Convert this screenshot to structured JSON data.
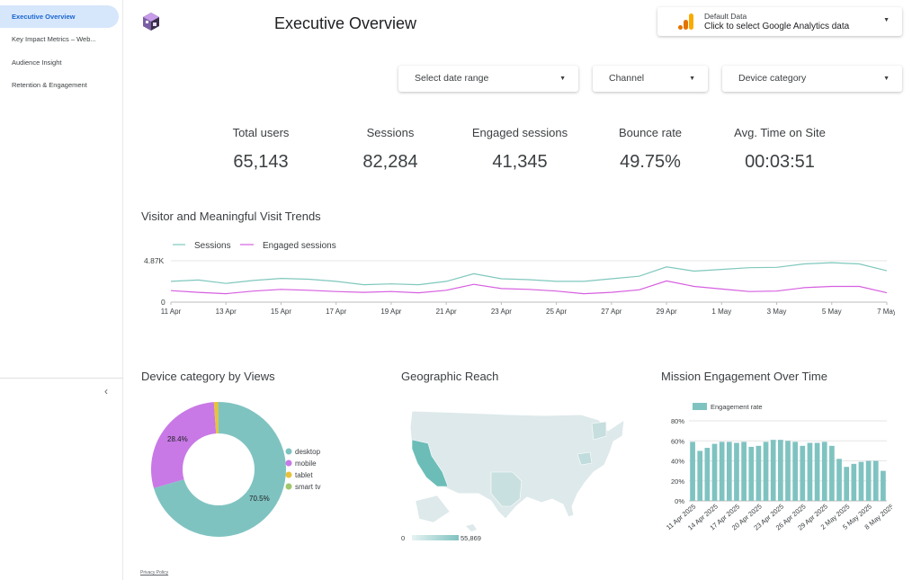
{
  "sidebar": {
    "items": [
      {
        "label": "Executive Overview",
        "active": true
      },
      {
        "label": "Key Impact Metrics – Web...",
        "active": false
      },
      {
        "label": "Audience Insight",
        "active": false
      },
      {
        "label": "Retention & Engagement",
        "active": false
      }
    ],
    "collapse_icon": "chevron-left-icon"
  },
  "header": {
    "title": "Executive Overview",
    "data_source": {
      "label": "Default Data",
      "prompt": "Click to select Google Analytics data",
      "icon": "google-analytics-icon"
    }
  },
  "filters": {
    "date_range": "Select date range",
    "channel": "Channel",
    "device_category": "Device category"
  },
  "kpis": [
    {
      "label": "Total users",
      "value": "65,143"
    },
    {
      "label": "Sessions",
      "value": "82,284"
    },
    {
      "label": "Engaged sessions",
      "value": "41,345"
    },
    {
      "label": "Bounce rate",
      "value": "49.75%"
    },
    {
      "label": "Avg. Time on Site",
      "value": "00:03:51"
    }
  ],
  "titles": {
    "trends": "Visitor and Meaningful Visit Trends",
    "device": "Device category by Views",
    "geo": "Geographic Reach",
    "mission": "Mission Engagement Over Time"
  },
  "footer": {
    "privacy": "Privacy Policy"
  },
  "colors": {
    "sessions": "#7fc8bd",
    "engaged": "#d65fe0",
    "desktop": "#7fc3c1",
    "mobile": "#c879e6",
    "tablet": "#e9c23b",
    "smart_tv": "#9ec86b",
    "bar": "#7fc3c1"
  },
  "chart_data": [
    {
      "id": "trends",
      "type": "line",
      "title": "Visitor and Meaningful Visit Trends",
      "legend": [
        "Sessions",
        "Engaged sessions"
      ],
      "y_ticks": [
        "4.87K",
        "0"
      ],
      "ylim": [
        0,
        4870
      ],
      "x_tick_labels": [
        "11 Apr",
        "13 Apr",
        "15 Apr",
        "17 Apr",
        "19 Apr",
        "21 Apr",
        "23 Apr",
        "25 Apr",
        "27 Apr",
        "29 Apr",
        "1 May",
        "3 May",
        "5 May",
        "7 May"
      ],
      "series": [
        {
          "name": "Sessions",
          "values": [
            2450,
            2600,
            2200,
            2550,
            2800,
            2700,
            2450,
            2050,
            2150,
            2050,
            2450,
            3350,
            2750,
            2650,
            2450,
            2450,
            2750,
            3050,
            4150,
            3650,
            3850,
            4050,
            4100,
            4500,
            4650,
            4500,
            3700
          ]
        },
        {
          "name": "Engaged sessions",
          "values": [
            1350,
            1150,
            1000,
            1300,
            1500,
            1400,
            1250,
            1150,
            1250,
            1100,
            1400,
            2100,
            1600,
            1500,
            1300,
            1000,
            1150,
            1450,
            2500,
            1850,
            1550,
            1250,
            1300,
            1700,
            1850,
            1850,
            1100
          ]
        }
      ]
    },
    {
      "id": "device",
      "type": "pie",
      "title": "Device category by Views",
      "labels": [
        "desktop",
        "mobile",
        "tablet",
        "smart tv"
      ],
      "values": [
        70.5,
        28.4,
        1.0,
        0.1
      ],
      "data_labels": [
        "70.5%",
        "28.4%",
        "",
        ""
      ]
    },
    {
      "id": "geo",
      "type": "heatmap",
      "title": "Geographic Reach",
      "scale_min": "0",
      "scale_max": "55,869"
    },
    {
      "id": "mission",
      "type": "bar",
      "title": "Mission Engagement Over Time",
      "legend": "Engagement rate",
      "y_ticks": [
        "80%",
        "60%",
        "40%",
        "20%",
        "0%"
      ],
      "ylim": [
        0,
        80
      ],
      "x_tick_labels": [
        "11 Apr 2025",
        "14 Apr 2025",
        "17 Apr 2025",
        "20 Apr 2025",
        "23 Apr 2025",
        "26 Apr 2025",
        "29 Apr 2025",
        "2 May 2025",
        "5 May 2025",
        "8 May 2025"
      ],
      "values": [
        59,
        50,
        53,
        57,
        59,
        59,
        58,
        59,
        54,
        55,
        59,
        61,
        61,
        60,
        59,
        55,
        58,
        58,
        59,
        55,
        42,
        34,
        37,
        39,
        40,
        40,
        30
      ]
    }
  ]
}
